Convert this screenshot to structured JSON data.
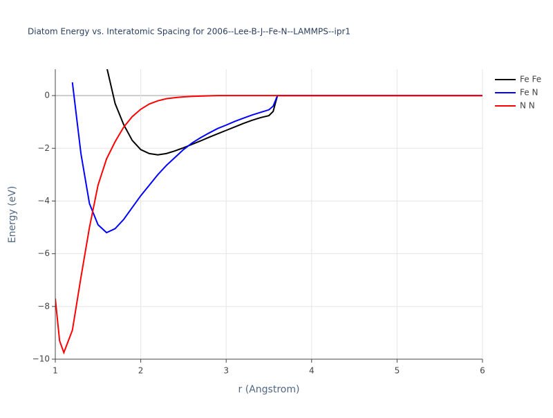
{
  "chart_data": {
    "type": "line",
    "title": "Diatom Energy vs. Interatomic Spacing for 2006--Lee-B-J--Fe-N--LAMMPS--ipr1",
    "x_label": "r (Angstrom)",
    "y_label": "Energy (eV)",
    "x": [
      1.0,
      1.05,
      1.1,
      1.2,
      1.3,
      1.4,
      1.5,
      1.6,
      1.7,
      1.8,
      1.9,
      2.0,
      2.1,
      2.2,
      2.3,
      2.4,
      2.5,
      2.6,
      2.7,
      2.8,
      2.9,
      3.0,
      3.1,
      3.2,
      3.3,
      3.4,
      3.5,
      3.55,
      3.6,
      6.0
    ],
    "series": [
      {
        "name": "Fe Fe",
        "color": "#000000",
        "values": [
          null,
          null,
          null,
          null,
          null,
          null,
          null,
          1.1,
          -0.3,
          -1.1,
          -1.7,
          -2.05,
          -2.2,
          -2.25,
          -2.2,
          -2.1,
          -1.98,
          -1.85,
          -1.72,
          -1.58,
          -1.45,
          -1.32,
          -1.19,
          -1.06,
          -0.94,
          -0.84,
          -0.76,
          -0.6,
          0,
          0
        ]
      },
      {
        "name": "Fe N",
        "color": "#0000ff",
        "values": [
          null,
          null,
          null,
          0.5,
          -2.2,
          -4.1,
          -4.9,
          -5.2,
          -5.05,
          -4.7,
          -4.25,
          -3.8,
          -3.4,
          -3.0,
          -2.65,
          -2.35,
          -2.05,
          -1.8,
          -1.6,
          -1.42,
          -1.25,
          -1.12,
          -0.98,
          -0.86,
          -0.74,
          -0.64,
          -0.54,
          -0.4,
          0,
          0
        ]
      },
      {
        "name": "N N",
        "color": "#ff0000",
        "values": [
          -7.7,
          -9.3,
          -9.75,
          -8.9,
          -6.9,
          -5.0,
          -3.4,
          -2.4,
          -1.75,
          -1.2,
          -0.8,
          -0.52,
          -0.32,
          -0.2,
          -0.12,
          -0.08,
          -0.05,
          -0.03,
          -0.02,
          -0.01,
          0,
          0,
          0,
          0,
          0,
          0,
          0,
          0,
          0,
          0
        ]
      }
    ],
    "xlim": [
      1,
      6
    ],
    "xticks": [
      1,
      2,
      3,
      4,
      5,
      6
    ],
    "ylim": [
      -10,
      1
    ],
    "yticks": [
      {
        "value": -10,
        "label": "−10"
      },
      {
        "value": -8,
        "label": "−8"
      },
      {
        "value": -6,
        "label": "−6"
      },
      {
        "value": -4,
        "label": "−4"
      },
      {
        "value": -2,
        "label": "−2"
      },
      0
    ],
    "grid": true,
    "legend": "top-right"
  }
}
